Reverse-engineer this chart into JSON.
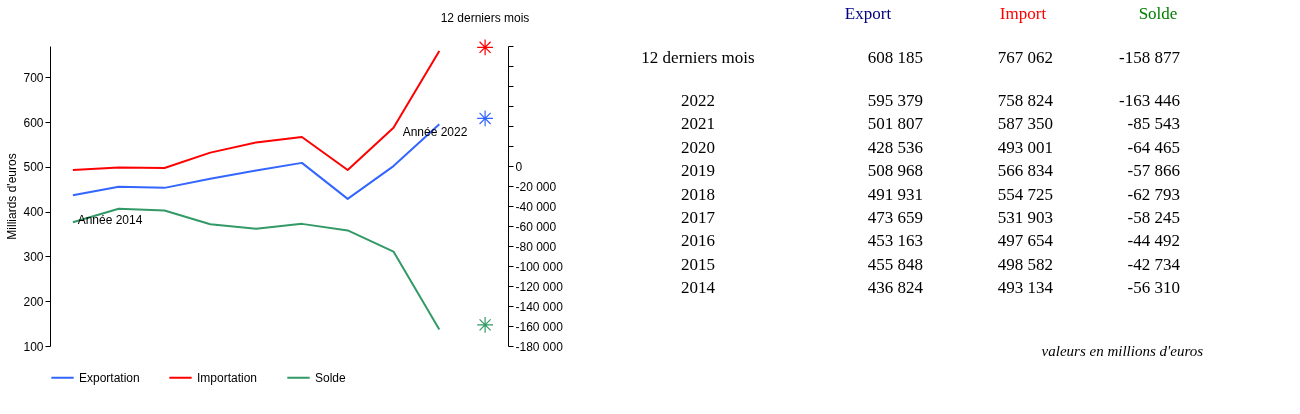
{
  "chart_data": {
    "type": "line",
    "ylabel": "Milliards d'euros",
    "categories": [
      null,
      null,
      null,
      null,
      null,
      null,
      null,
      null,
      null,
      null
    ],
    "series": [
      {
        "name": "Exportation",
        "color": "#3366ff",
        "values": [
          436.824,
          455.848,
          453.163,
          473.659,
          491.931,
          508.968,
          428.536,
          501.807,
          595.379,
          null
        ]
      },
      {
        "name": "Importation",
        "color": "#ff0000",
        "values": [
          493.134,
          498.582,
          497.654,
          531.903,
          554.725,
          566.834,
          493.001,
          587.35,
          758.824,
          null
        ]
      },
      {
        "name": "Solde",
        "color": "#339966",
        "axis": "y2",
        "values": [
          -56310,
          -42734,
          -44492,
          -58245,
          -62793,
          -57866,
          -64465,
          -85543,
          -163446,
          null
        ]
      },
      {
        "type": "scatter",
        "marker": "cross",
        "color": "#3366ff",
        "values": [
          null,
          null,
          null,
          null,
          null,
          null,
          null,
          null,
          null,
          608.185
        ]
      },
      {
        "type": "scatter",
        "marker": "cross",
        "color": "#ff0000",
        "values": [
          null,
          null,
          null,
          null,
          null,
          null,
          null,
          null,
          null,
          767.062
        ]
      },
      {
        "type": "scatter",
        "marker": "cross",
        "color": "#339966",
        "axis": "y2",
        "values": [
          null,
          null,
          null,
          null,
          null,
          null,
          null,
          null,
          null,
          -158877
        ]
      }
    ],
    "ylim": [
      100,
      770
    ],
    "yticks": [
      100,
      200,
      300,
      400,
      500,
      600,
      700
    ],
    "y2lim": [
      -180000,
      120000
    ],
    "y2ticks": [
      {
        "value": -180000,
        "label": "-180 000"
      },
      {
        "value": -160000,
        "label": "-160 000"
      },
      {
        "value": -140000,
        "label": "-140 000"
      },
      {
        "value": -120000,
        "label": "-120 000"
      },
      {
        "value": -100000,
        "label": "-100 000"
      },
      {
        "value": -80000,
        "label": "-80 000"
      },
      {
        "value": -60000,
        "label": "-60 000"
      },
      {
        "value": -40000,
        "label": "-40 000"
      },
      {
        "value": -20000,
        "label": "-20 000"
      },
      0,
      {
        "value": 20000,
        "label": null
      },
      {
        "value": 40000,
        "label": null
      },
      {
        "value": 60000,
        "label": null
      },
      {
        "value": 80000,
        "label": null
      },
      {
        "value": 100000,
        "label": null
      },
      {
        "value": 120000,
        "label": null
      }
    ],
    "annotations": [
      "Année 2014",
      "Année 2022",
      "12 derniers mois",
      "Export",
      "Import",
      "Solde",
      "valeurs en millions d'euros",
      "12 derniers mois",
      "608 185",
      "767 062",
      "-158 877",
      "2022",
      "595 379",
      "758 824",
      "-163 446",
      "2021",
      "501 807",
      "587 350",
      "-85 543",
      "2020",
      "428 536",
      "493 001",
      "-64 465",
      "2019",
      "508 968",
      "566 834",
      "-57 866",
      "2018",
      "491 931",
      "554 725",
      "-62 793",
      "2017",
      "473 659",
      "531 903",
      "-58 245",
      "2016",
      "453 163",
      "497 654",
      "-44 492",
      "2015",
      "455 848",
      "498 582",
      "-42 734",
      "2014",
      "436 824",
      "493 134",
      "-56 310"
    ],
    "tick_labels": "y",
    "grid": false,
    "legend": "bottom",
    "line_style": "solid"
  }
}
